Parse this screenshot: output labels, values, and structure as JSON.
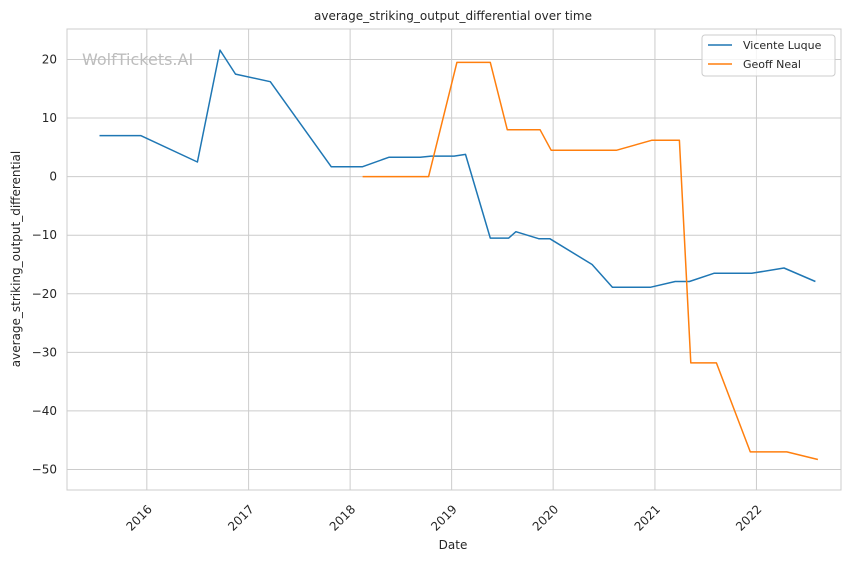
{
  "chart_data": {
    "type": "line",
    "title": "average_striking_output_differential over time",
    "xlabel": "Date",
    "ylabel": "average_striking_output_differential",
    "watermark": "WolfTickets.AI",
    "xlim": [
      "2015-03-20",
      "2022-11-01"
    ],
    "ylim": [
      -53.5,
      25.2
    ],
    "x_ticks": [
      "2016-01-01",
      "2017-01-01",
      "2018-01-01",
      "2019-01-01",
      "2020-01-01",
      "2021-01-01",
      "2022-01-01"
    ],
    "x_tick_labels": [
      "2016",
      "2017",
      "2018",
      "2019",
      "2020",
      "2021",
      "2022"
    ],
    "y_ticks": [
      20,
      10,
      0,
      -10,
      -20,
      -30,
      -40,
      -50
    ],
    "y_tick_labels": [
      "20",
      "10",
      "0",
      "−10",
      "−20",
      "−30",
      "−40",
      "−50"
    ],
    "grid": true,
    "legend_position": "top-right",
    "series": [
      {
        "name": "Vicente Luque",
        "color": "#1f77b4",
        "points": [
          [
            "2015-07-15",
            7.0
          ],
          [
            "2015-12-10",
            7.0
          ],
          [
            "2016-07-01",
            2.5
          ],
          [
            "2016-09-20",
            21.6
          ],
          [
            "2016-11-15",
            17.5
          ],
          [
            "2017-03-20",
            16.2
          ],
          [
            "2017-10-25",
            1.7
          ],
          [
            "2018-02-15",
            1.7
          ],
          [
            "2018-05-20",
            3.3
          ],
          [
            "2018-09-10",
            3.3
          ],
          [
            "2018-10-20",
            3.5
          ],
          [
            "2019-01-10",
            3.5
          ],
          [
            "2019-02-20",
            3.8
          ],
          [
            "2019-05-20",
            -10.5
          ],
          [
            "2019-07-25",
            -10.5
          ],
          [
            "2019-08-20",
            -9.4
          ],
          [
            "2019-11-10",
            -10.6
          ],
          [
            "2019-12-20",
            -10.6
          ],
          [
            "2020-05-20",
            -15.0
          ],
          [
            "2020-08-01",
            -18.9
          ],
          [
            "2020-12-15",
            -18.9
          ],
          [
            "2021-03-15",
            -17.9
          ],
          [
            "2021-05-05",
            -17.9
          ],
          [
            "2021-08-01",
            -16.5
          ],
          [
            "2021-12-15",
            -16.5
          ],
          [
            "2022-04-10",
            -15.6
          ],
          [
            "2022-08-01",
            -17.9
          ]
        ]
      },
      {
        "name": "Geoff Neal",
        "color": "#ff7f0e",
        "points": [
          [
            "2018-02-15",
            0.0
          ],
          [
            "2018-10-10",
            0.0
          ],
          [
            "2019-01-20",
            19.5
          ],
          [
            "2019-05-20",
            19.5
          ],
          [
            "2019-07-20",
            8.0
          ],
          [
            "2019-11-15",
            8.0
          ],
          [
            "2019-12-25",
            4.5
          ],
          [
            "2020-08-15",
            4.5
          ],
          [
            "2020-12-20",
            6.2
          ],
          [
            "2021-03-30",
            6.2
          ],
          [
            "2021-05-10",
            -31.8
          ],
          [
            "2021-08-10",
            -31.8
          ],
          [
            "2021-12-10",
            -47.0
          ],
          [
            "2022-04-20",
            -47.0
          ],
          [
            "2022-08-10",
            -48.3
          ]
        ]
      }
    ]
  }
}
